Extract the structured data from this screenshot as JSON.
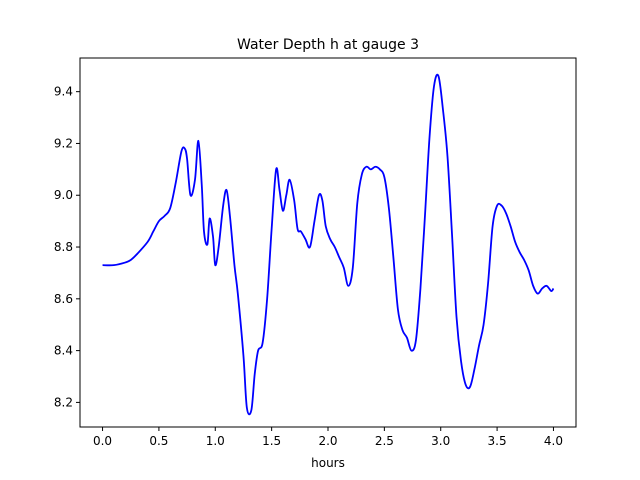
{
  "chart_data": {
    "type": "line",
    "title": "Water Depth h at gauge 3",
    "xlabel": "hours",
    "ylabel": "",
    "xlim": [
      -0.2,
      4.2
    ],
    "ylim": [
      8.105,
      9.53
    ],
    "grid": false,
    "xticks": [
      0.0,
      0.5,
      1.0,
      1.5,
      2.0,
      2.5,
      3.0,
      3.5,
      4.0
    ],
    "xtick_labels": [
      "0.0",
      "0.5",
      "1.0",
      "1.5",
      "2.0",
      "2.5",
      "3.0",
      "3.5",
      "4.0"
    ],
    "yticks": [
      8.2,
      8.4,
      8.6,
      8.8,
      9.0,
      9.2,
      9.4
    ],
    "ytick_labels": [
      "8.2",
      "8.4",
      "8.6",
      "8.8",
      "9.0",
      "9.2",
      "9.4"
    ],
    "series": [
      {
        "color": "#0000ff",
        "x": [
          0.0,
          0.1,
          0.2,
          0.25,
          0.3,
          0.4,
          0.45,
          0.5,
          0.55,
          0.6,
          0.65,
          0.7,
          0.73,
          0.75,
          0.78,
          0.82,
          0.85,
          0.88,
          0.9,
          0.93,
          0.95,
          0.98,
          1.0,
          1.03,
          1.07,
          1.1,
          1.13,
          1.17,
          1.2,
          1.25,
          1.28,
          1.32,
          1.35,
          1.38,
          1.42,
          1.46,
          1.5,
          1.54,
          1.57,
          1.6,
          1.63,
          1.66,
          1.7,
          1.73,
          1.76,
          1.8,
          1.84,
          1.88,
          1.92,
          1.95,
          1.98,
          2.02,
          2.06,
          2.1,
          2.14,
          2.18,
          2.22,
          2.26,
          2.3,
          2.34,
          2.38,
          2.42,
          2.46,
          2.5,
          2.54,
          2.58,
          2.62,
          2.66,
          2.7,
          2.74,
          2.78,
          2.82,
          2.86,
          2.9,
          2.94,
          2.98,
          3.02,
          3.06,
          3.1,
          3.14,
          3.18,
          3.22,
          3.26,
          3.3,
          3.34,
          3.38,
          3.42,
          3.46,
          3.5,
          3.54,
          3.58,
          3.62,
          3.66,
          3.7,
          3.74,
          3.78,
          3.82,
          3.86,
          3.9,
          3.94,
          3.98,
          4.0
        ],
        "values": [
          8.73,
          8.73,
          8.74,
          8.75,
          8.77,
          8.82,
          8.86,
          8.9,
          8.92,
          8.95,
          9.05,
          9.17,
          9.18,
          9.14,
          9.0,
          9.06,
          9.21,
          9.04,
          8.86,
          8.81,
          8.91,
          8.84,
          8.73,
          8.8,
          8.96,
          9.02,
          8.92,
          8.73,
          8.62,
          8.38,
          8.18,
          8.17,
          8.31,
          8.4,
          8.43,
          8.6,
          8.87,
          9.1,
          9.02,
          8.94,
          9.0,
          9.06,
          8.98,
          8.87,
          8.86,
          8.83,
          8.8,
          8.9,
          9.0,
          8.98,
          8.88,
          8.83,
          8.8,
          8.76,
          8.72,
          8.65,
          8.72,
          8.97,
          9.08,
          9.11,
          9.1,
          9.11,
          9.1,
          9.07,
          8.95,
          8.76,
          8.56,
          8.48,
          8.45,
          8.4,
          8.44,
          8.64,
          8.92,
          9.22,
          9.42,
          9.46,
          9.33,
          9.15,
          8.85,
          8.53,
          8.36,
          8.27,
          8.26,
          8.33,
          8.42,
          8.5,
          8.66,
          8.88,
          8.96,
          8.96,
          8.93,
          8.88,
          8.82,
          8.78,
          8.75,
          8.71,
          8.65,
          8.62,
          8.64,
          8.65,
          8.63,
          8.64
        ]
      }
    ]
  }
}
